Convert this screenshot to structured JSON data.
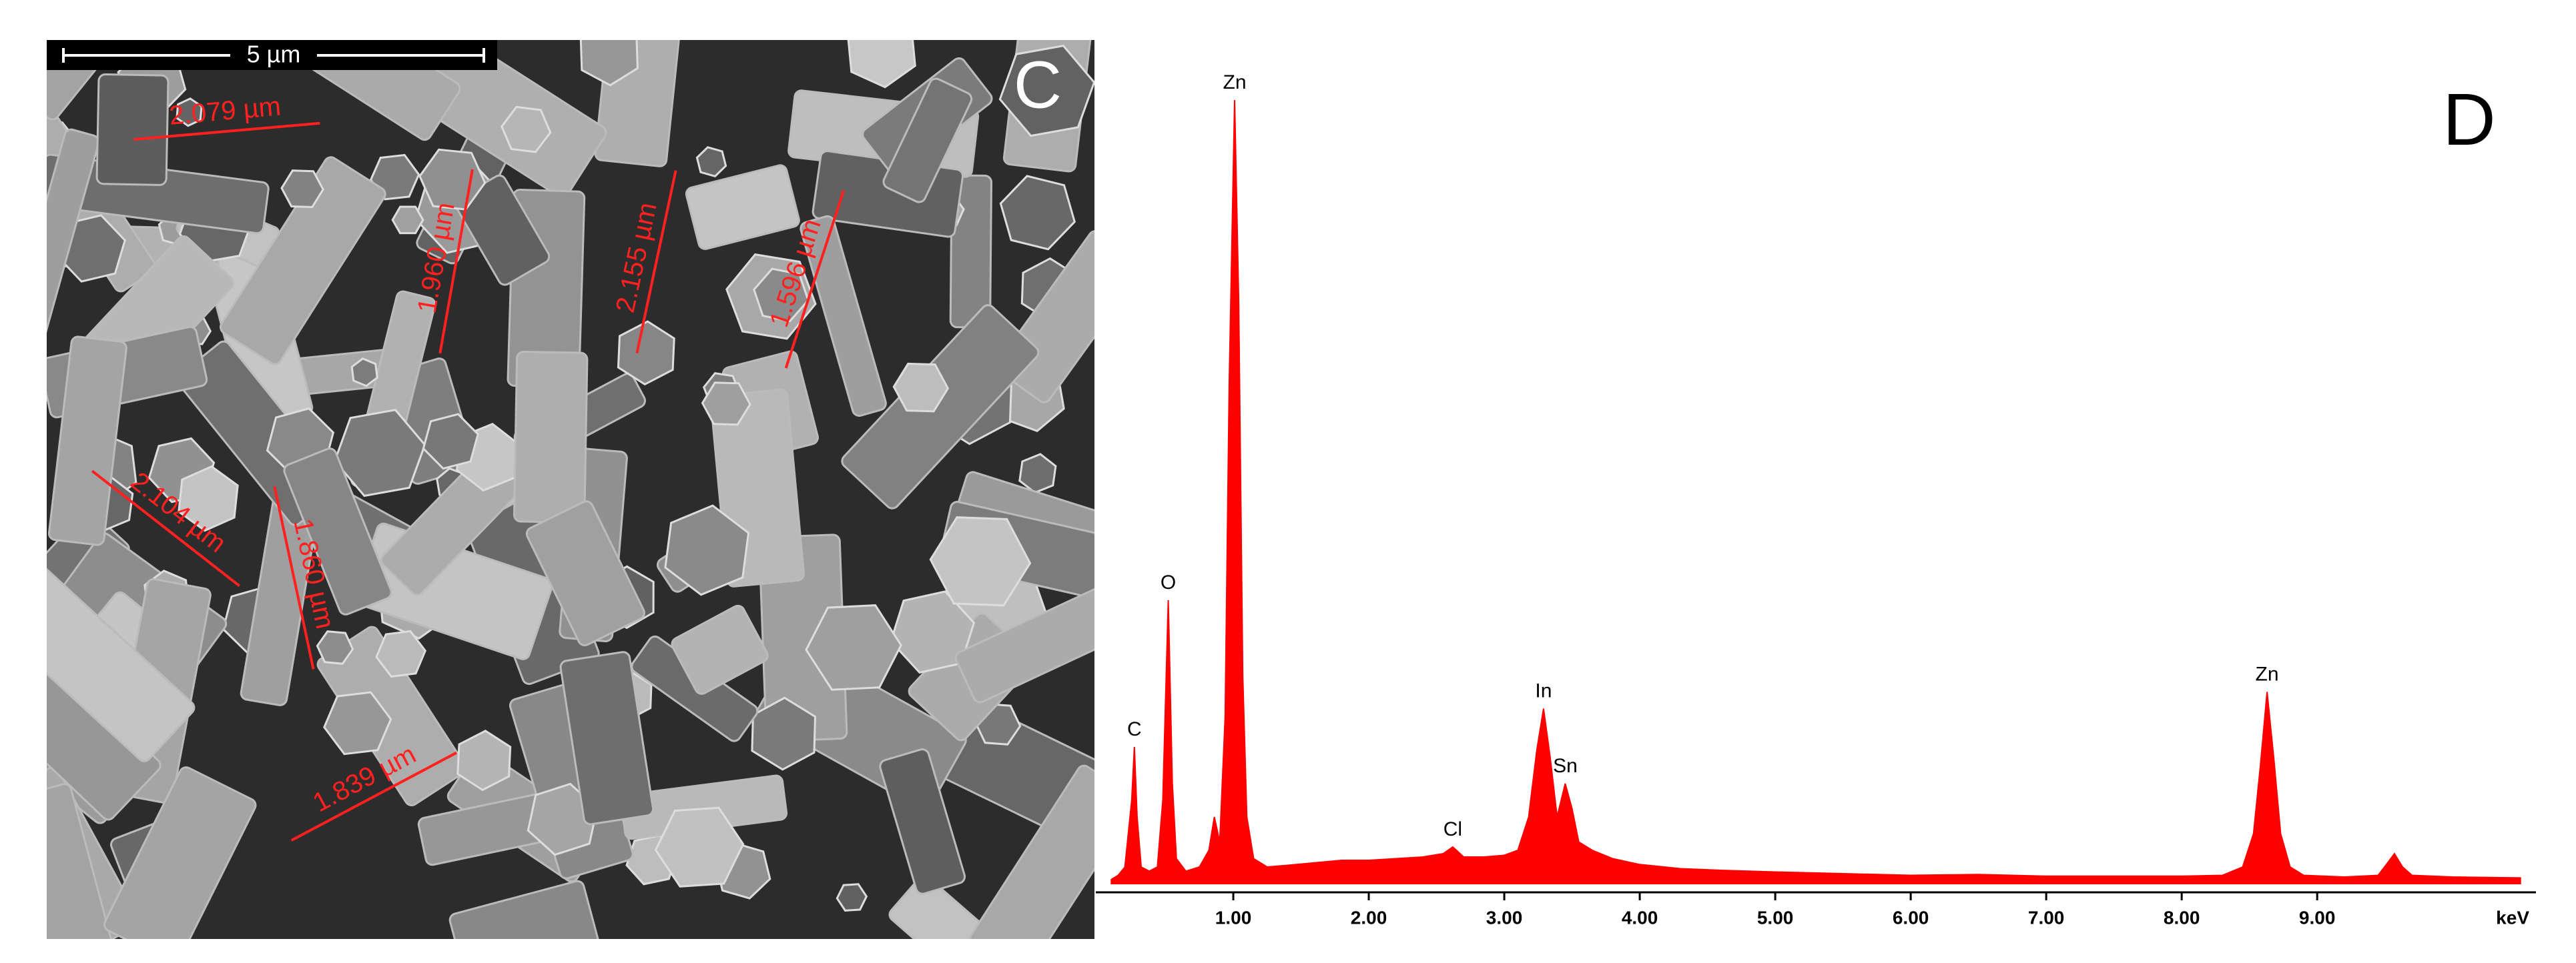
{
  "sem_panel": {
    "panel_label": "C",
    "scale_bar": "5 µm",
    "measurements": [
      "2.079 µm",
      "1.960 µm",
      "2.155 µm",
      "1.596 µm",
      "2.104 µm",
      "1.860 µm",
      "1.839 µm"
    ]
  },
  "chart_data": {
    "type": "area",
    "panel_label": "D",
    "x_label": "keV",
    "color": "#ff0000",
    "x": [
      0.1,
      0.15,
      0.2,
      0.25,
      0.27,
      0.29,
      0.32,
      0.38,
      0.44,
      0.48,
      0.52,
      0.55,
      0.58,
      0.65,
      0.75,
      0.82,
      0.86,
      0.9,
      0.94,
      0.97,
      1.01,
      1.04,
      1.07,
      1.1,
      1.15,
      1.25,
      1.4,
      1.6,
      1.8,
      2.0,
      2.2,
      2.4,
      2.55,
      2.62,
      2.7,
      2.85,
      3.0,
      3.1,
      3.18,
      3.24,
      3.29,
      3.34,
      3.39,
      3.45,
      3.5,
      3.55,
      3.65,
      3.8,
      4.0,
      4.3,
      4.6,
      5.0,
      5.5,
      6.0,
      6.5,
      7.0,
      7.5,
      8.0,
      8.3,
      8.45,
      8.53,
      8.58,
      8.63,
      8.68,
      8.73,
      8.8,
      8.9,
      9.2,
      9.45,
      9.52,
      9.57,
      9.63,
      9.7,
      10.0,
      10.5
    ],
    "values": [
      0.5,
      1,
      2,
      10,
      16.4,
      8,
      2,
      1.5,
      2,
      10,
      34,
      12,
      3,
      1.5,
      2,
      4,
      8,
      5,
      20,
      60,
      94,
      70,
      25,
      8,
      3,
      2,
      2.2,
      2.5,
      2.8,
      2.8,
      3,
      3.2,
      3.6,
      4.4,
      3.2,
      3.2,
      3.4,
      4,
      8,
      16,
      21,
      15,
      8,
      12,
      9,
      5,
      4,
      3,
      2.3,
      1.8,
      1.6,
      1.4,
      1.2,
      1,
      1.1,
      0.9,
      0.9,
      0.9,
      1,
      2,
      6,
      14,
      23,
      15,
      6,
      2,
      1,
      0.8,
      1,
      2.5,
      3.6,
      2,
      1,
      0.8,
      0.7
    ],
    "xlim": [
      0,
      10.6
    ],
    "ylim": [
      0,
      100
    ],
    "xticks": [
      {
        "value": 1,
        "label": "1.00"
      },
      {
        "value": 2,
        "label": "2.00"
      },
      {
        "value": 3,
        "label": "3.00"
      },
      {
        "value": 4,
        "label": "4.00"
      },
      {
        "value": 5,
        "label": "5.00"
      },
      {
        "value": 6,
        "label": "6.00"
      },
      {
        "value": 7,
        "label": "7.00"
      },
      {
        "value": 8,
        "label": "8.00"
      },
      {
        "value": 9,
        "label": "9.00"
      }
    ],
    "annotations": [
      {
        "text": "C",
        "x": 0.27,
        "y": 16.4
      },
      {
        "text": "O",
        "x": 0.52,
        "y": 34
      },
      {
        "text": "Zn",
        "x": 1.01,
        "y": 94
      },
      {
        "text": "Cl",
        "x": 2.62,
        "y": 4.4
      },
      {
        "text": "In",
        "x": 3.29,
        "y": 21
      },
      {
        "text": "Sn",
        "x": 3.45,
        "y": 12
      },
      {
        "text": "Zn",
        "x": 8.63,
        "y": 23
      }
    ]
  }
}
